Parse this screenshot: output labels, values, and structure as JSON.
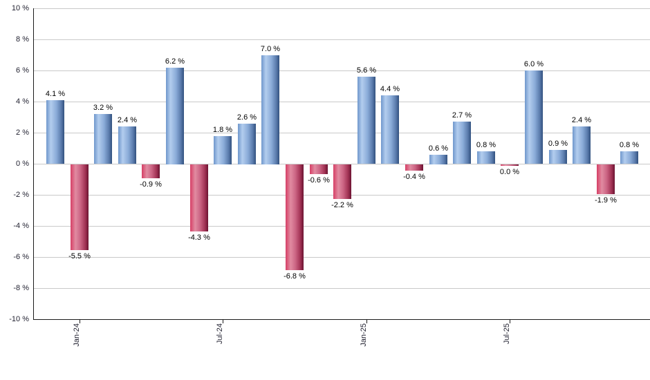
{
  "chart_data": {
    "type": "bar",
    "title": "",
    "xlabel": "",
    "ylabel": "",
    "grid": true,
    "legend": false,
    "colors": {
      "positive_bar": "#7ba3d6",
      "negative_bar": "#cc3a62",
      "gridline": "#c9c9c9",
      "axis": "#1a1a1a",
      "label_text": "#000000"
    },
    "y_axis": {
      "min": -10,
      "max": 10,
      "step": 2,
      "suffix": " %",
      "labels": [
        "10 %",
        "8 %",
        "6 %",
        "4 %",
        "2 %",
        "0 %",
        "-2 %",
        "-4 %",
        "-6 %",
        "-8 %",
        "-10 %"
      ]
    },
    "x_ticks": [
      {
        "bar_index": 1,
        "label": "Jan-24"
      },
      {
        "bar_index": 7,
        "label": "Jul-24"
      },
      {
        "bar_index": 13,
        "label": "Jan-25"
      },
      {
        "bar_index": 19,
        "label": "Jul-25"
      }
    ],
    "bars": [
      {
        "value": 4.1,
        "label": "4.1 %",
        "direction": "up"
      },
      {
        "value": -5.5,
        "label": "-5.5 %",
        "direction": "down"
      },
      {
        "value": 3.2,
        "label": "3.2 %",
        "direction": "up"
      },
      {
        "value": 2.4,
        "label": "2.4 %",
        "direction": "up"
      },
      {
        "value": -0.9,
        "label": "-0.9 %",
        "direction": "down"
      },
      {
        "value": 6.2,
        "label": "6.2 %",
        "direction": "up"
      },
      {
        "value": -4.3,
        "label": "-4.3 %",
        "direction": "down"
      },
      {
        "value": 1.8,
        "label": "1.8 %",
        "direction": "up"
      },
      {
        "value": 2.6,
        "label": "2.6 %",
        "direction": "up"
      },
      {
        "value": 7.0,
        "label": "7.0 %",
        "direction": "up"
      },
      {
        "value": -6.8,
        "label": "-6.8 %",
        "direction": "down"
      },
      {
        "value": -0.6,
        "label": "-0.6 %",
        "direction": "down"
      },
      {
        "value": -2.2,
        "label": "-2.2 %",
        "direction": "down"
      },
      {
        "value": 5.6,
        "label": "5.6 %",
        "direction": "up"
      },
      {
        "value": 4.4,
        "label": "4.4 %",
        "direction": "up"
      },
      {
        "value": -0.4,
        "label": "-0.4 %",
        "direction": "down"
      },
      {
        "value": 0.6,
        "label": "0.6 %",
        "direction": "up"
      },
      {
        "value": 2.7,
        "label": "2.7 %",
        "direction": "up"
      },
      {
        "value": 0.8,
        "label": "0.8 %",
        "direction": "up"
      },
      {
        "value": 0.0,
        "label": "0.0 %",
        "direction": "down"
      },
      {
        "value": 6.0,
        "label": "6.0 %",
        "direction": "up"
      },
      {
        "value": 0.9,
        "label": "0.9 %",
        "direction": "up"
      },
      {
        "value": 2.4,
        "label": "2.4 %",
        "direction": "up"
      },
      {
        "value": -1.9,
        "label": "-1.9 %",
        "direction": "down"
      },
      {
        "value": 0.8,
        "label": "0.8 %",
        "direction": "up"
      }
    ]
  }
}
